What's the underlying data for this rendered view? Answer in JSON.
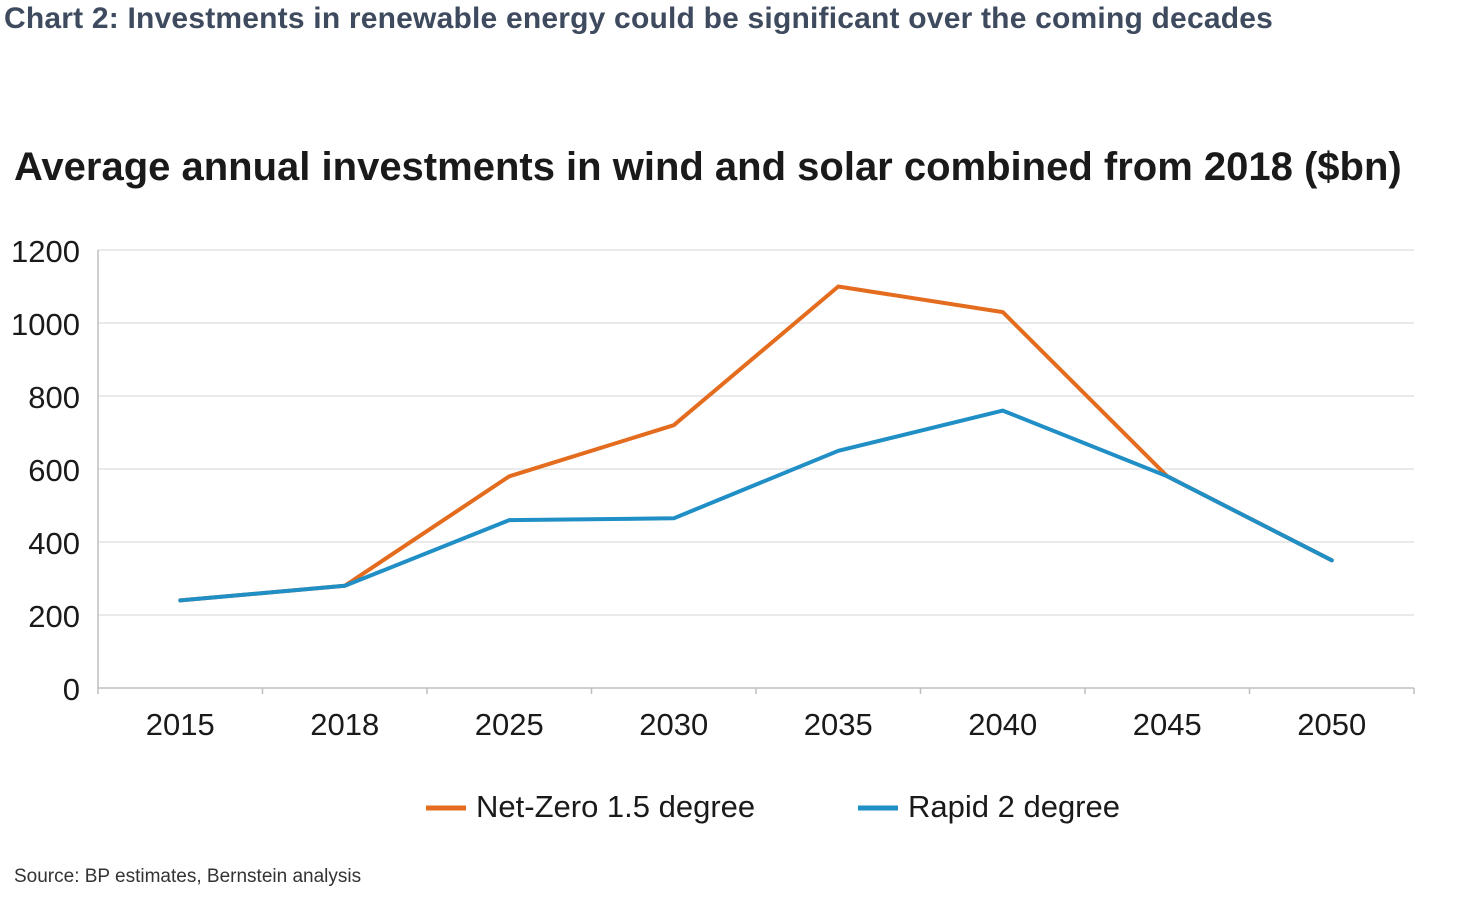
{
  "header": {
    "title": "Chart 2: Investments in renewable energy could be significant over the coming decades"
  },
  "source": "Source: BP estimates, Bernstein analysis",
  "chart_data": {
    "type": "line",
    "title": "Average annual investments in wind and solar combined from 2018 ($bn)",
    "categories": [
      "2015",
      "2018",
      "2025",
      "2030",
      "2035",
      "2040",
      "2045",
      "2050"
    ],
    "yticks": [
      "0",
      "200",
      "400",
      "600",
      "800",
      "1000",
      "1200"
    ],
    "ylim": [
      0,
      1200
    ],
    "grid": true,
    "legend_position": "bottom",
    "series": [
      {
        "name": "Net-Zero 1.5 degree",
        "color": "#e36c1e",
        "values": [
          240,
          280,
          580,
          720,
          1100,
          1030,
          580,
          350
        ]
      },
      {
        "name": "Rapid 2 degree",
        "color": "#1f8fc6",
        "values": [
          240,
          280,
          460,
          465,
          650,
          760,
          580,
          350
        ]
      }
    ]
  }
}
